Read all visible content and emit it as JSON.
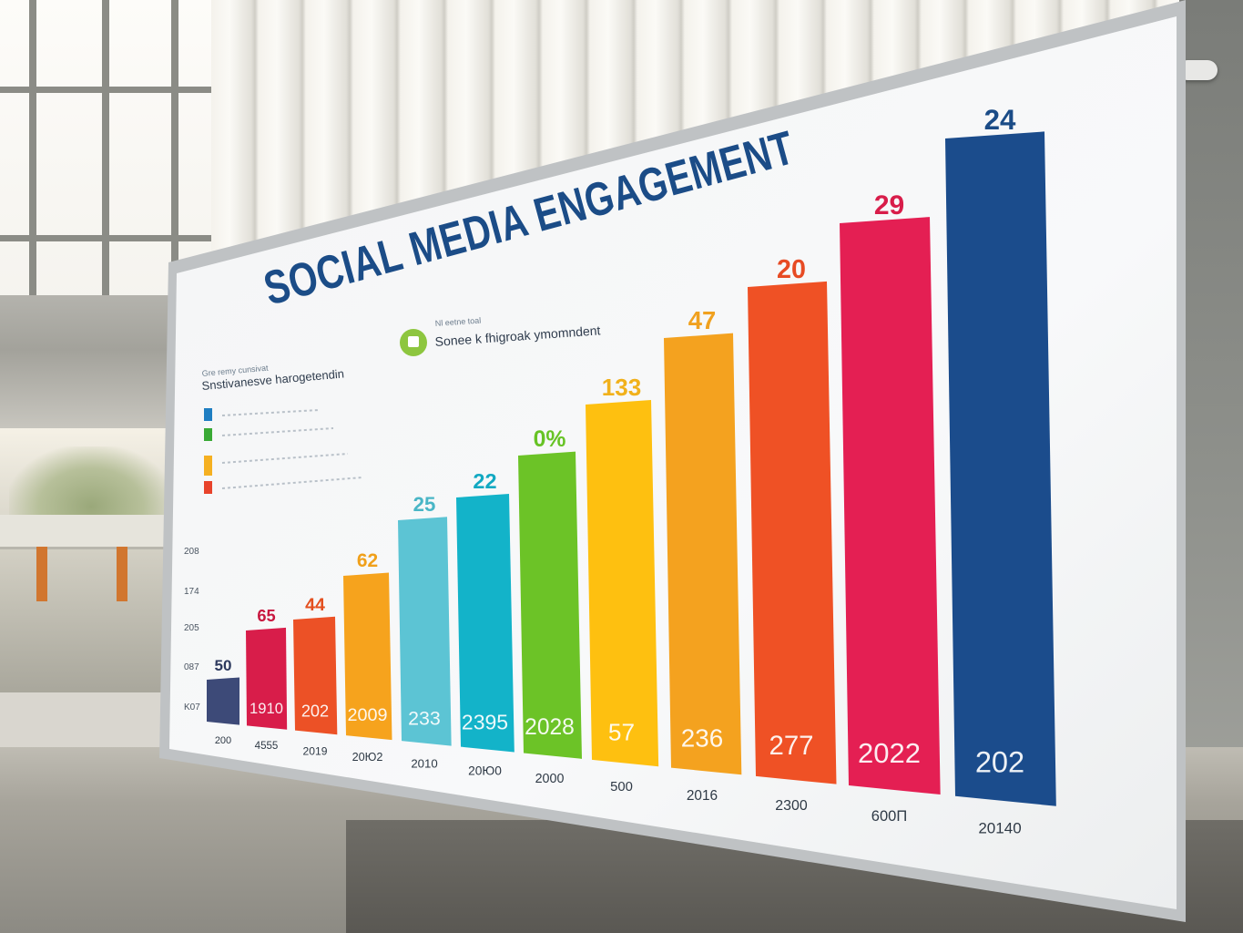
{
  "board": {
    "title": "SOCIAL MEDIA ENGAGEMENT",
    "legend_left_heading": "Gre remy cunsivat",
    "legend_left_subheading": "Snstivanesve harogetendin",
    "legend_center_heading": "Nl eetne toal",
    "legend_center_label": "Sonee k fhigroak ymomndent",
    "icon_name": "chart-icon",
    "colors": {
      "title": "#1b4c87",
      "board_bg": "#f6f7f8",
      "frame": "#c9cbcd",
      "legend_icon": "#8dc63f"
    },
    "legend_swatches": [
      "#1f7ec2",
      "#39a935",
      "#f5b021",
      "#e8432b"
    ],
    "y_ticks": [
      "208",
      "174",
      "205",
      "087",
      "K07"
    ],
    "chart_data": {
      "type": "bar",
      "categories": [
        "200",
        "4555",
        "2019",
        "20Ю2",
        "2010",
        "20Ю0",
        "2000",
        "500",
        "2016",
        "2300",
        "600П",
        "20140"
      ],
      "values": [
        50,
        65,
        44,
        62,
        25,
        22,
        0,
        133,
        47,
        20,
        29,
        24
      ],
      "top_labels": [
        "50",
        "65",
        "44",
        "62",
        "25",
        "22",
        "0%",
        "133",
        "47",
        "20",
        "29",
        "24"
      ],
      "inner_labels": [
        "",
        "1910",
        "202",
        "2009",
        "233",
        "2395",
        "2028",
        "57",
        "236",
        "277",
        "2022",
        "202"
      ],
      "bar_colors": [
        "#3d4a78",
        "#d81d4a",
        "#ec5126",
        "#f6a31d",
        "#5cc4d4",
        "#13b3c9",
        "#6cc327",
        "#fec010",
        "#f4a21f",
        "#ef5125",
        "#e41f53",
        "#1b4c8c"
      ],
      "top_label_colors": [
        "#2d3a5e",
        "#c8173f",
        "#e4501f",
        "#f0a01a",
        "#49b6c6",
        "#12a9c2",
        "#67c325",
        "#f1b11b",
        "#f0a11f",
        "#e74b24",
        "#d81d4a",
        "#1b4c87"
      ],
      "title": "SOCIAL MEDIA ENGAGEMENT",
      "xlabel": "",
      "ylabel": ""
    }
  }
}
